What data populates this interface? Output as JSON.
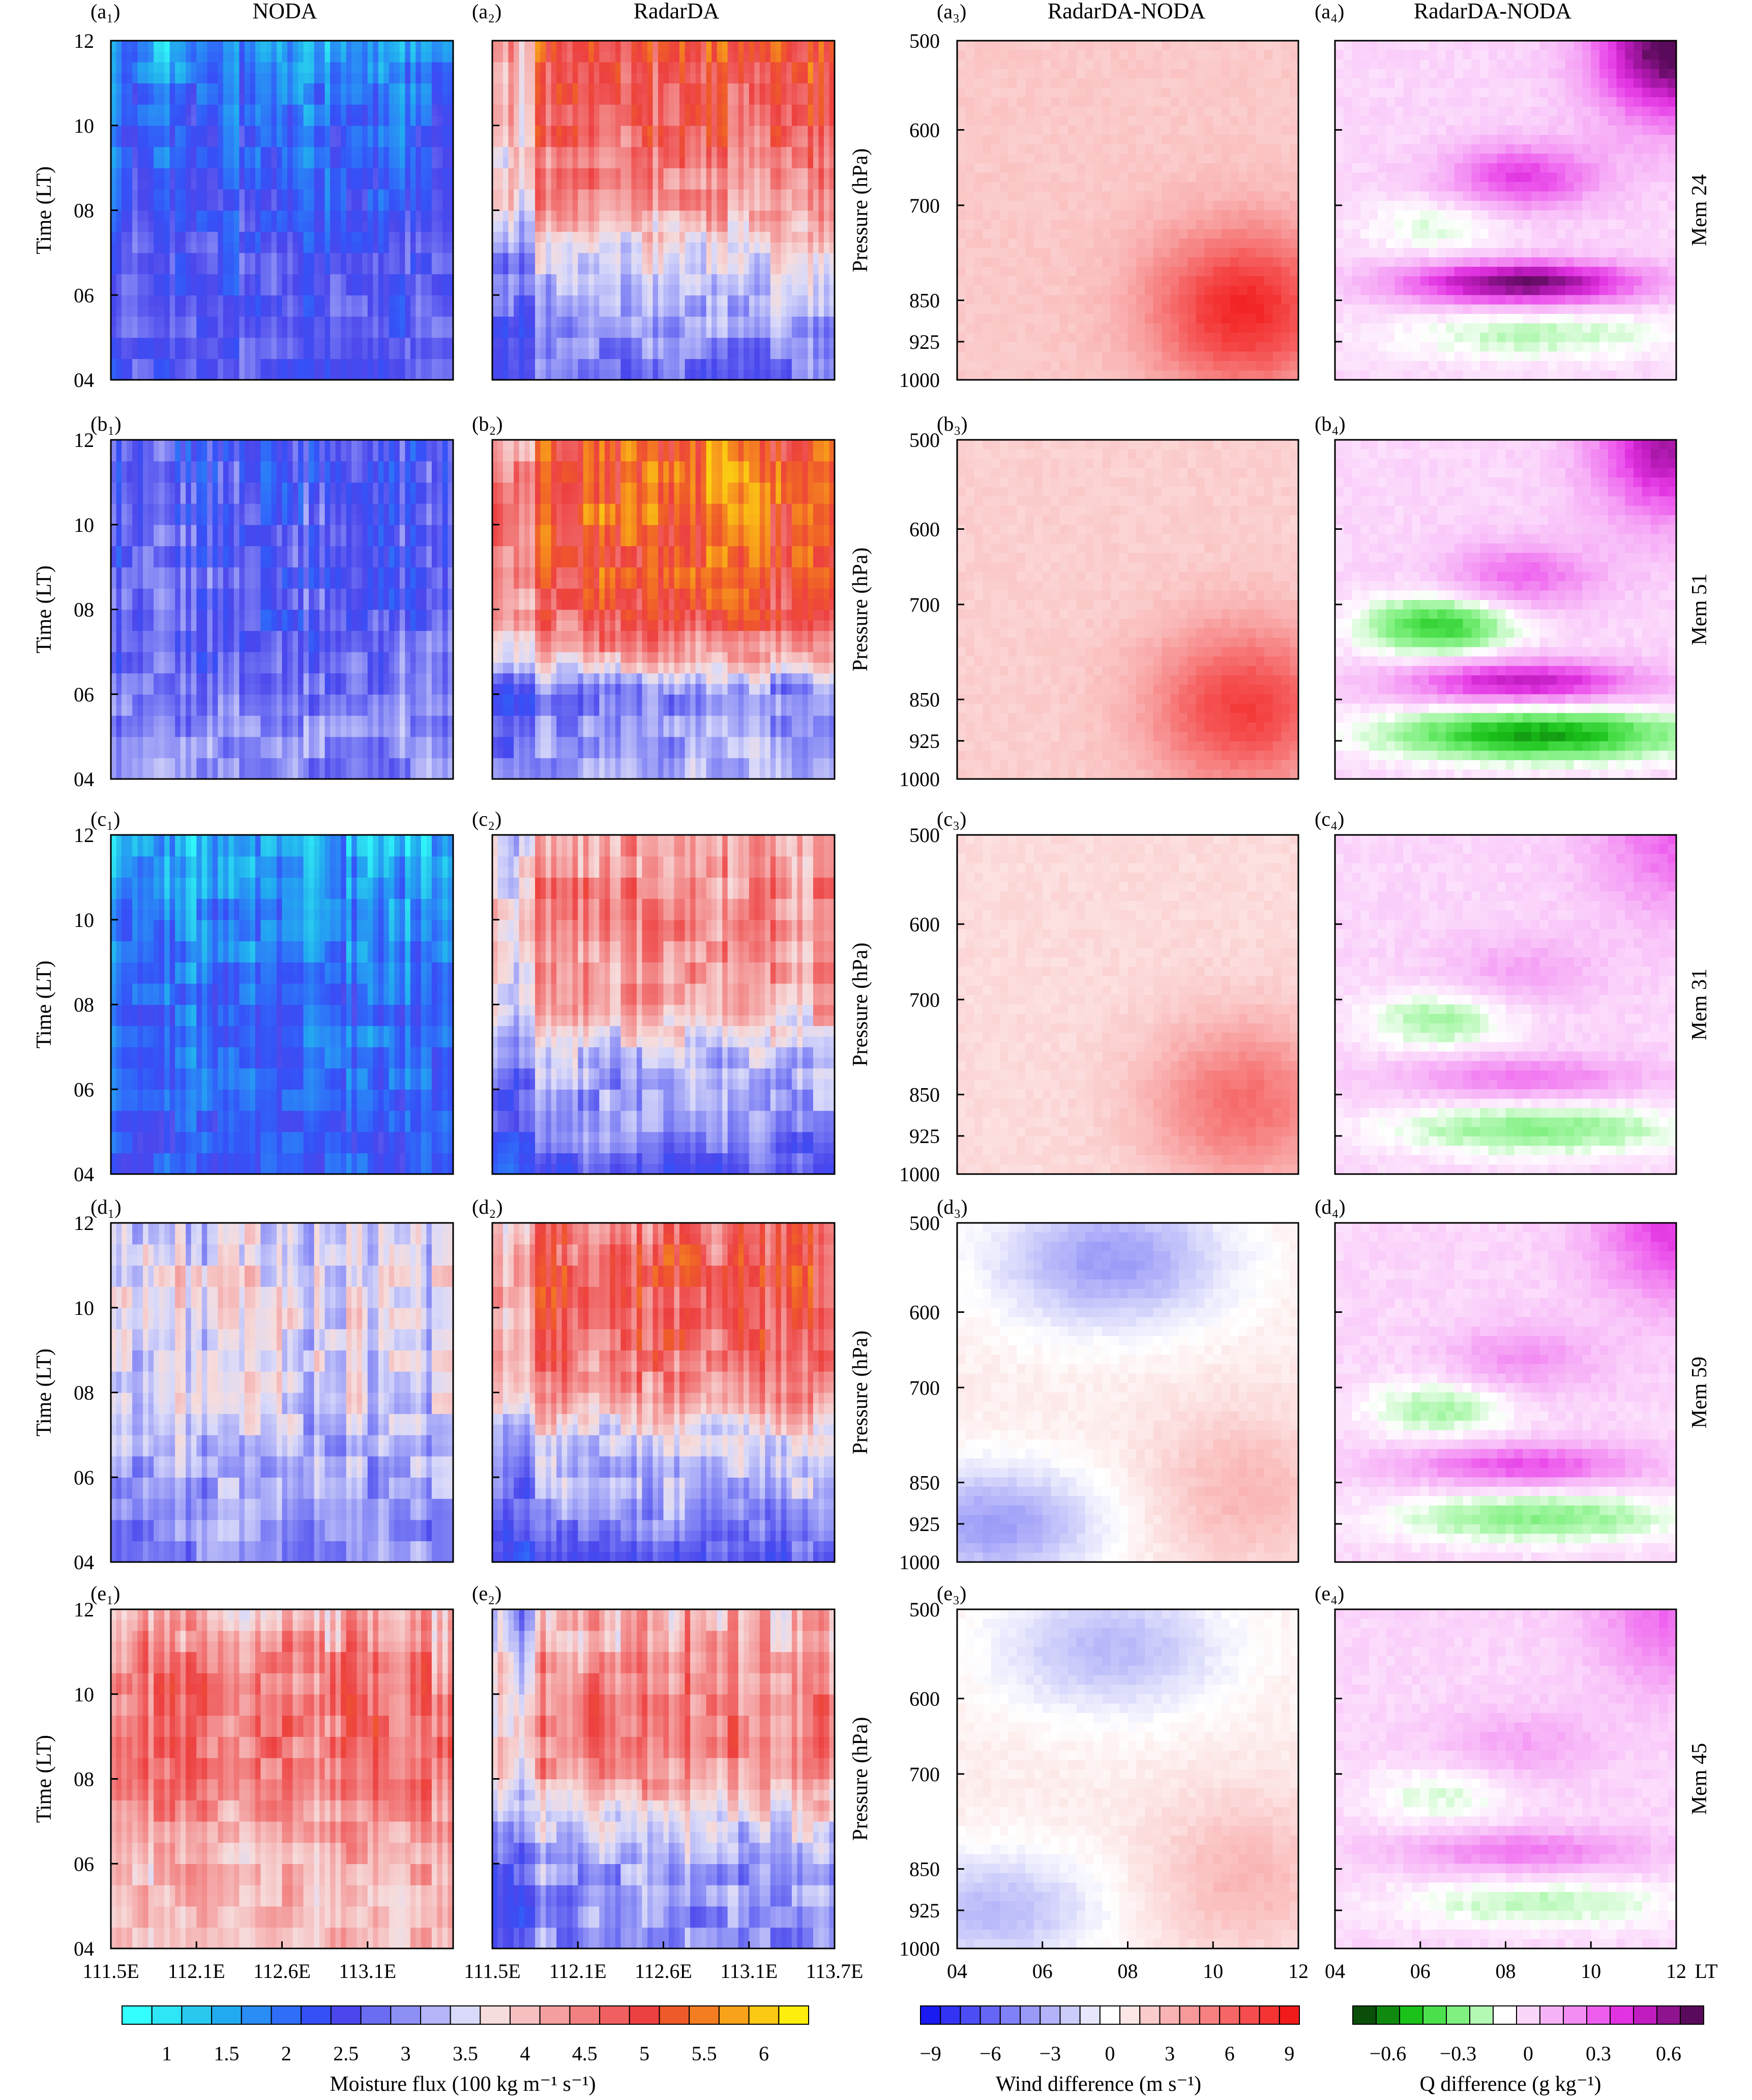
{
  "columns": [
    {
      "label": "(a₁)",
      "title": "NODA"
    },
    {
      "label": "(a₂)",
      "title": "RadarDA"
    },
    {
      "label": "(a₃)",
      "title": "RadarDA-NODA"
    },
    {
      "label": "(a₄)",
      "title": "RadarDA-NODA"
    }
  ],
  "rows": [
    {
      "letter": "a",
      "member": "Mem 24"
    },
    {
      "letter": "b",
      "member": "Mem 51"
    },
    {
      "letter": "c",
      "member": "Mem 31"
    },
    {
      "letter": "d",
      "member": "Mem 59"
    },
    {
      "letter": "e",
      "member": "Mem 45"
    }
  ],
  "panel_labels": [
    [
      "(a₁)",
      "(a₂)",
      "(a₃)",
      "(a₄)"
    ],
    [
      "(b₁)",
      "(b₂)",
      "(b₃)",
      "(b₄)"
    ],
    [
      "(c₁)",
      "(c₂)",
      "(c₃)",
      "(c₄)"
    ],
    [
      "(d₁)",
      "(d₂)",
      "(d₃)",
      "(d₄)"
    ],
    [
      "(e₁)",
      "(e₂)",
      "(e₃)",
      "(e₄)"
    ]
  ],
  "axes": {
    "time_ylabel": "Time (LT)",
    "time_ticks": [
      "04",
      "06",
      "08",
      "10",
      "12"
    ],
    "lon_ticks": [
      "111.5E",
      "112.1E",
      "112.6E",
      "113.1E",
      "113.7E"
    ],
    "pressure_ylabel": "Pressure (hPa)",
    "pressure_ticks": [
      "500",
      "600",
      "700",
      "850",
      "925",
      "1000"
    ],
    "lt_ticks": [
      "04",
      "06",
      "08",
      "10",
      "12"
    ],
    "lt_unit": "LT"
  },
  "colorbars": [
    {
      "label": "Moisture flux (100 kg m⁻¹ s⁻¹)",
      "ticks": [
        "1",
        "1.5",
        "2",
        "2.5",
        "3",
        "3.5",
        "4",
        "4.5",
        "5",
        "5.5",
        "6"
      ],
      "colors": [
        "#33ffff",
        "#2ee6f5",
        "#29c9ef",
        "#22aaf0",
        "#2a8cf5",
        "#2f6ef8",
        "#3650f7",
        "#4b47ec",
        "#6a6cf2",
        "#8d8ff5",
        "#b3b5f8",
        "#d9daf9",
        "#f6dcdc",
        "#f6c0c0",
        "#f4a0a0",
        "#f28080",
        "#f06060",
        "#ed4040",
        "#ef5a2a",
        "#f47d22",
        "#f8a21a",
        "#fbc813",
        "#feee0d"
      ]
    },
    {
      "label": "Wind difference (m s⁻¹)",
      "ticks": [
        "−9",
        "−6",
        "−3",
        "0",
        "3",
        "6",
        "9"
      ],
      "colors": [
        "#1a1af2",
        "#3333f4",
        "#4d4df5",
        "#6666f6",
        "#8080f7",
        "#9999f8",
        "#b3b3fa",
        "#ccccfb",
        "#e6e6fd",
        "#ffffff",
        "#fde6e6",
        "#fbcccc",
        "#fab3b3",
        "#f89999",
        "#f78080",
        "#f66666",
        "#f54d4d",
        "#f43333",
        "#f21a1a"
      ]
    },
    {
      "label": "Q difference (g kg⁻¹)",
      "ticks": [
        "−0.6",
        "−0.3",
        "0",
        "0.3",
        "0.6"
      ],
      "colors": [
        "#0a4e0a",
        "#0f8a0f",
        "#1ac21a",
        "#4de04d",
        "#80f080",
        "#b3f8b3",
        "#ffffff",
        "#fbd6fb",
        "#f7b3f7",
        "#f38cf3",
        "#ee5eee",
        "#e133e1",
        "#c01cc0",
        "#8f138f",
        "#5a0a5a"
      ]
    }
  ],
  "chart_data": [
    {
      "type": "heatmap",
      "variable": "Moisture flux",
      "panels": [
        "a1",
        "a2",
        "b1",
        "b2",
        "c1",
        "c2",
        "d1",
        "d2",
        "e1",
        "e2"
      ],
      "x_ticks": [
        "111.5E",
        "112.1E",
        "112.6E",
        "113.1E",
        "113.7E"
      ],
      "y_ticks": [
        "04",
        "06",
        "08",
        "10",
        "12"
      ],
      "ylabel": "Time (LT)",
      "levels": [
        1,
        1.5,
        2,
        2.5,
        3,
        3.5,
        4,
        4.5,
        5,
        5.5,
        6
      ],
      "values_by_hour_04_to_12": {
        "a1": [
          2.6,
          2.6,
          2.5,
          2.5,
          2.3,
          2.2,
          2.1,
          1.9,
          1.6
        ],
        "a2": [
          2.8,
          3.0,
          3.3,
          3.6,
          4.3,
          4.5,
          4.8,
          4.9,
          5.1
        ],
        "b1": [
          3.0,
          3.0,
          2.8,
          2.7,
          2.6,
          2.6,
          2.6,
          2.5,
          2.5
        ],
        "b2": [
          3.2,
          3.1,
          3.0,
          4.3,
          4.9,
          5.2,
          5.3,
          5.4,
          5.3
        ],
        "c1": [
          2.2,
          2.2,
          2.1,
          2.0,
          2.0,
          1.9,
          1.8,
          1.6,
          1.5
        ],
        "c2": [
          2.6,
          3.0,
          3.1,
          3.5,
          4.2,
          4.3,
          4.5,
          4.4,
          4.3
        ],
        "d1": [
          3.0,
          3.0,
          3.1,
          3.3,
          3.5,
          3.5,
          3.6,
          3.6,
          3.5
        ],
        "d2": [
          2.6,
          3.0,
          3.3,
          3.6,
          4.3,
          4.7,
          4.8,
          4.9,
          4.6
        ],
        "e1": [
          4.0,
          4.0,
          4.1,
          4.3,
          4.5,
          4.6,
          4.6,
          4.4,
          4.0
        ],
        "e2": [
          3.0,
          3.0,
          3.2,
          3.6,
          4.3,
          4.5,
          4.5,
          4.3,
          4.1
        ]
      }
    },
    {
      "type": "heatmap",
      "variable": "Wind difference (RadarDA-NODA)",
      "panels": [
        "a3",
        "b3",
        "c3",
        "d3",
        "e3"
      ],
      "x_ticks": [
        "04",
        "06",
        "08",
        "10",
        "12"
      ],
      "y_ticks": [
        "500",
        "600",
        "700",
        "850",
        "925",
        "1000"
      ],
      "ylabel": "Pressure (hPa)",
      "levels": [
        -9,
        -6,
        -3,
        0,
        3,
        6,
        9
      ],
      "max_positive": {
        "a3": 9,
        "b3": 8,
        "c3": 6,
        "d3": 3,
        "e3": 3
      },
      "min_negative": {
        "a3": 0,
        "b3": 0,
        "c3": 0,
        "d3": -4,
        "e3": -3
      }
    },
    {
      "type": "heatmap",
      "variable": "Q difference (RadarDA-NODA)",
      "panels": [
        "a4",
        "b4",
        "c4",
        "d4",
        "e4"
      ],
      "x_ticks": [
        "04",
        "06",
        "08",
        "10",
        "12"
      ],
      "x_unit": "LT",
      "levels": [
        -0.6,
        -0.3,
        0,
        0.3,
        0.6
      ],
      "max_positive": {
        "a4": 0.8,
        "b4": 0.6,
        "c4": 0.3,
        "d4": 0.4,
        "e4": 0.3
      },
      "min_negative": {
        "a4": -0.2,
        "b4": -0.6,
        "c4": -0.3,
        "d4": -0.3,
        "e4": -0.2
      }
    }
  ]
}
